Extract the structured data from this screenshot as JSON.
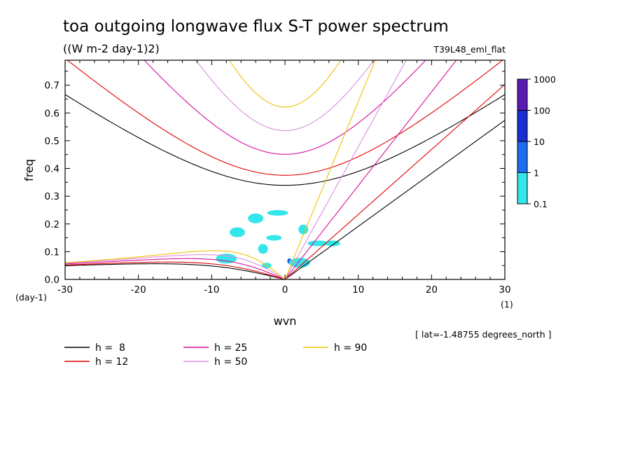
{
  "chart_data": {
    "type": "line",
    "title": "toa outgoing longwave flux S-T power spectrum",
    "subtitle": "((W m-2 day-1)2)",
    "experiment": "T39L48_eml_flat",
    "xlabel": "wvn",
    "ylabel": "freq",
    "x_unit": "(1)",
    "y_unit": "(day-1)",
    "xlim": [
      -30,
      30
    ],
    "ylim": [
      0,
      0.79
    ],
    "xticks": [
      -30,
      -20,
      -10,
      0,
      10,
      20,
      30
    ],
    "yticks": [
      0.0,
      0.1,
      0.2,
      0.3,
      0.4,
      0.5,
      0.6,
      0.7
    ],
    "xtick_labels": [
      "-30",
      "-20",
      "-10",
      "0",
      "10",
      "20",
      "30"
    ],
    "ytick_labels": [
      "0.0",
      "0.1",
      "0.2",
      "0.3",
      "0.4",
      "0.5",
      "0.6",
      "0.7"
    ],
    "lat_note": "[ lat=-1.48755 degrees_north ]",
    "colorbar": {
      "levels": [
        "1000",
        "100",
        "10",
        "1",
        "0.1"
      ],
      "colors": [
        "#5a1ab4",
        "#1a2fd0",
        "#1e6cf0",
        "#33e6ea"
      ]
    },
    "series": [
      {
        "name": "h =  8",
        "h": 8,
        "color": "#000000"
      },
      {
        "name": "h = 12",
        "h": 12,
        "color": "#e00000"
      },
      {
        "name": "h = 25",
        "h": 25,
        "color": "#d6109c"
      },
      {
        "name": "h = 50",
        "h": 50,
        "color": "#dc8ee0"
      },
      {
        "name": "h = 90",
        "h": 90,
        "color": "#f0c000"
      }
    ],
    "power_blobs": [
      {
        "x": 0.6,
        "y": 0.066,
        "level": "10"
      },
      {
        "x": -4.0,
        "y": 0.22,
        "level": "0.1"
      },
      {
        "x": -1.0,
        "y": 0.24,
        "level": "0.1"
      },
      {
        "x": 2.5,
        "y": 0.18,
        "level": "0.1"
      },
      {
        "x": -1.5,
        "y": 0.15,
        "level": "0.1"
      },
      {
        "x": 2.0,
        "y": 0.06,
        "level": "0.1"
      },
      {
        "x": -2.5,
        "y": 0.05,
        "level": "0.1"
      },
      {
        "x": -6.5,
        "y": 0.17,
        "level": "0.1"
      },
      {
        "x": 4.5,
        "y": 0.13,
        "level": "0.1"
      },
      {
        "x": -3.0,
        "y": 0.11,
        "level": "0.1"
      },
      {
        "x": 6.5,
        "y": 0.13,
        "level": "0.1"
      },
      {
        "x": -8.0,
        "y": 0.075,
        "level": "0.1"
      }
    ]
  }
}
